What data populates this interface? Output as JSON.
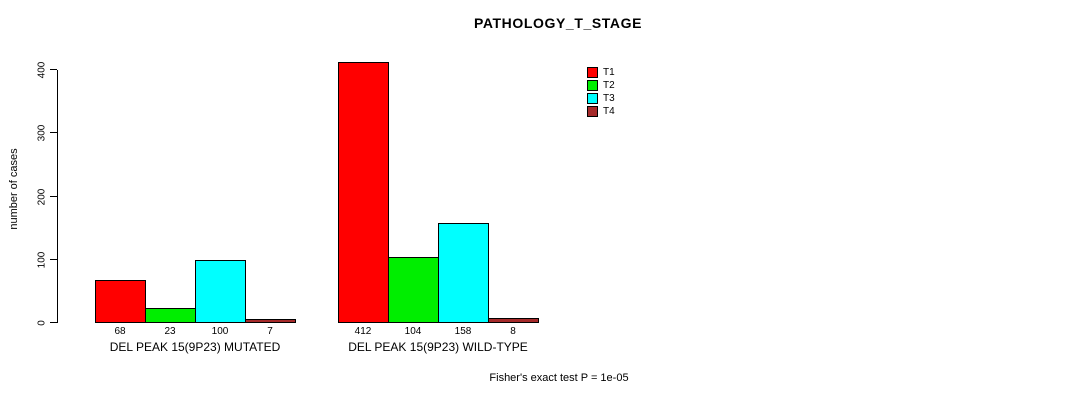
{
  "title": "PATHOLOGY_T_STAGE",
  "y_axis_title": "number of cases",
  "footer": "Fisher's exact test P = 1e-05",
  "colors": {
    "t1": "#ff0000",
    "t2": "#00ee00",
    "t3": "#00ffff",
    "t4": "#a52a2a",
    "axis": "#000000",
    "background": "#ffffff"
  },
  "legend": {
    "items": [
      {
        "label": "T1",
        "color": "#ff0000"
      },
      {
        "label": "T2",
        "color": "#00ee00"
      },
      {
        "label": "T3",
        "color": "#00ffff"
      },
      {
        "label": "T4",
        "color": "#a52a2a"
      }
    ]
  },
  "chart_data": {
    "type": "bar",
    "title": "PATHOLOGY_T_STAGE",
    "xlabel": "",
    "ylabel": "number of cases",
    "categories": [
      "DEL PEAK 15(9P23) MUTATED",
      "DEL PEAK 15(9P23) WILD-TYPE"
    ],
    "series": [
      {
        "name": "T1",
        "color": "#ff0000",
        "values": [
          68,
          412
        ]
      },
      {
        "name": "T2",
        "color": "#00ee00",
        "values": [
          23,
          104
        ]
      },
      {
        "name": "T3",
        "color": "#00ffff",
        "values": [
          100,
          158
        ]
      },
      {
        "name": "T4",
        "color": "#a52a2a",
        "values": [
          7,
          8
        ]
      }
    ],
    "bar_value_labels": [
      [
        "68",
        "23",
        "100",
        "7"
      ],
      [
        "412",
        "104",
        "158",
        "8"
      ]
    ],
    "ylim": [
      0,
      400
    ],
    "yticks": [
      0,
      100,
      200,
      300,
      400
    ],
    "grid": false,
    "legend_position": "top-right",
    "annotation": "Fisher's exact test P = 1e-05"
  }
}
